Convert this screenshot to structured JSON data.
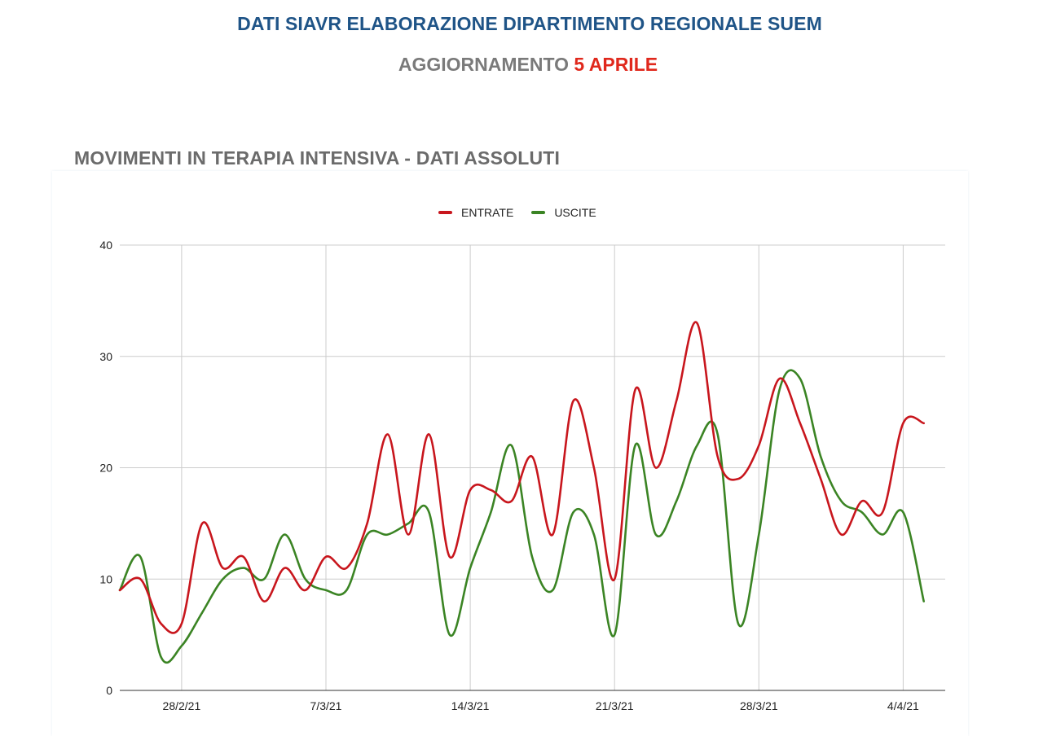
{
  "header": {
    "title": "DATI SIAVR ELABORAZIONE DIPARTIMENTO REGIONALE SUEM",
    "subtitle_prefix": "AGGIORNAMENTO ",
    "subtitle_highlight": "5 APRILE"
  },
  "colors": {
    "title": "#1f5487",
    "highlight": "#e0281c",
    "entrate": "#c8161d",
    "uscite": "#3b8424",
    "grid": "#cccccc"
  },
  "chart_data": {
    "type": "line",
    "title": "MOVIMENTI IN TERAPIA INTENSIVA - DATI ASSOLUTI",
    "xlabel": "",
    "ylabel": "",
    "ylim": [
      0,
      40
    ],
    "yticks": [
      "0",
      "10",
      "20",
      "30",
      "40"
    ],
    "x_tick_labels": [
      "28/2/21",
      "7/3/21",
      "14/3/21",
      "21/3/21",
      "28/3/21",
      "4/4/21"
    ],
    "x": [
      "25/2/21",
      "26/2/21",
      "27/2/21",
      "28/2/21",
      "1/3/21",
      "2/3/21",
      "3/3/21",
      "4/3/21",
      "5/3/21",
      "6/3/21",
      "7/3/21",
      "8/3/21",
      "9/3/21",
      "10/3/21",
      "11/3/21",
      "12/3/21",
      "13/3/21",
      "14/3/21",
      "15/3/21",
      "16/3/21",
      "17/3/21",
      "18/3/21",
      "19/3/21",
      "20/3/21",
      "21/3/21",
      "22/3/21",
      "23/3/21",
      "24/3/21",
      "25/3/21",
      "26/3/21",
      "27/3/21",
      "28/3/21",
      "29/3/21",
      "30/3/21",
      "31/3/21",
      "1/4/21",
      "2/4/21",
      "3/4/21",
      "4/4/21",
      "5/4/21"
    ],
    "legend_position": "top-center",
    "grid": true,
    "series": [
      {
        "name": "ENTRATE",
        "values": [
          9,
          10,
          6,
          6,
          15,
          11,
          12,
          8,
          11,
          9,
          12,
          11,
          15,
          23,
          14,
          23,
          12,
          18,
          18,
          17,
          21,
          14,
          26,
          20,
          10,
          27,
          20,
          26,
          33,
          21,
          19,
          22,
          28,
          24,
          19,
          14,
          17,
          16,
          24,
          24
        ]
      },
      {
        "name": "USCITE",
        "values": [
          9,
          12,
          3,
          4,
          7,
          10,
          11,
          10,
          14,
          10,
          9,
          9,
          14,
          14,
          15,
          16,
          5,
          11,
          16,
          22,
          12,
          9,
          16,
          14,
          5,
          22,
          14,
          17,
          22,
          23,
          6,
          14,
          27,
          28,
          21,
          17,
          16,
          14,
          16,
          8
        ]
      }
    ]
  }
}
